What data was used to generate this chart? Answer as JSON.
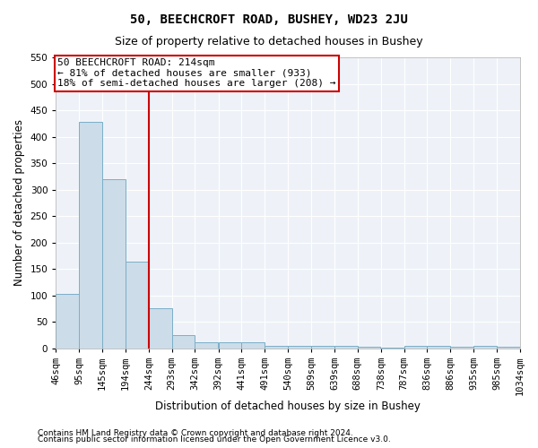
{
  "title": "50, BEECHCROFT ROAD, BUSHEY, WD23 2JU",
  "subtitle": "Size of property relative to detached houses in Bushey",
  "xlabel": "Distribution of detached houses by size in Bushey",
  "ylabel": "Number of detached properties",
  "footnote1": "Contains HM Land Registry data © Crown copyright and database right 2024.",
  "footnote2": "Contains public sector information licensed under the Open Government Licence v3.0.",
  "bar_left_edges": [
    46,
    95,
    145,
    194,
    244,
    293,
    342,
    392,
    441,
    491,
    540,
    589,
    639,
    688,
    738,
    787,
    836,
    886,
    935,
    985
  ],
  "bar_heights": [
    103,
    428,
    320,
    163,
    75,
    25,
    11,
    12,
    11,
    5,
    4,
    5,
    5,
    2,
    1,
    4,
    5,
    2,
    5,
    2
  ],
  "bin_width": 49,
  "property_line_x": 244,
  "ylim": [
    0,
    550
  ],
  "yticks": [
    0,
    50,
    100,
    150,
    200,
    250,
    300,
    350,
    400,
    450,
    500,
    550
  ],
  "tick_labels": [
    "46sqm",
    "95sqm",
    "145sqm",
    "194sqm",
    "244sqm",
    "293sqm",
    "342sqm",
    "392sqm",
    "441sqm",
    "491sqm",
    "540sqm",
    "589sqm",
    "639sqm",
    "688sqm",
    "738sqm",
    "787sqm",
    "836sqm",
    "886sqm",
    "935sqm",
    "985sqm",
    "1034sqm"
  ],
  "bar_color": "#ccdce8",
  "bar_edge_color": "#7aafc8",
  "bg_color": "#eef2f8",
  "grid_color": "#ffffff",
  "vline_color": "#cc0000",
  "annotation_text": "50 BEECHCROFT ROAD: 214sqm\n← 81% of detached houses are smaller (933)\n18% of semi-detached houses are larger (208) →",
  "annotation_box_color": "#cc0000",
  "title_fontsize": 10,
  "subtitle_fontsize": 9,
  "axis_label_fontsize": 8.5,
  "tick_fontsize": 7.5,
  "annotation_fontsize": 8,
  "footnote_fontsize": 6.5
}
